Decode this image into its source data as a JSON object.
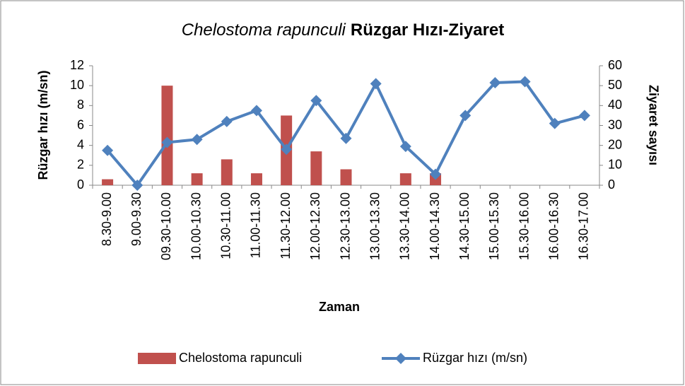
{
  "chart_data": {
    "type": "bar-line",
    "title_parts": [
      "Chelostoma rapunculi",
      "Rüzgar Hızı-Ziyaret"
    ],
    "x_label": "Zaman",
    "y_label": "Rüzgar hızı (m/sn)",
    "y2_label": "Ziyaret sayısı",
    "categories": [
      "8.30-9.00",
      "9.00-9.30",
      "09.30-10.00",
      "10.00-10.30",
      "10.30-11.00",
      "11.00-11.30",
      "11.30-12.00",
      "12.00-12.30",
      "12.30-13.00",
      "13.00-13.30",
      "13.30-14.00",
      "14.00-14.30",
      "14.30-15.00",
      "15.00-15.30",
      "15.30-16.00",
      "16.00-16.30",
      "16.30-17.00"
    ],
    "series": [
      {
        "name": "Chelostoma rapunculi",
        "kind": "bar",
        "axis": "y2",
        "color": "#c0504d",
        "values": [
          3,
          0,
          50,
          6,
          13,
          6,
          35,
          17,
          8,
          0,
          6,
          6,
          0,
          0,
          0,
          0,
          0
        ]
      },
      {
        "name": "Rüzgar hızı (m/sn)",
        "kind": "line",
        "axis": "y",
        "color": "#4f81bd",
        "values": [
          3.5,
          0,
          4.3,
          4.6,
          6.4,
          7.5,
          3.6,
          8.5,
          4.7,
          10.2,
          3.9,
          1.1,
          7.0,
          10.3,
          10.4,
          6.2,
          7.0
        ]
      }
    ],
    "ylim": [
      0,
      12
    ],
    "yticks": [
      0,
      2,
      4,
      6,
      8,
      10,
      12
    ],
    "y2lim": [
      0,
      60
    ],
    "y2ticks": [
      0,
      10,
      20,
      30,
      40,
      50,
      60
    ],
    "legend": "bottom"
  }
}
